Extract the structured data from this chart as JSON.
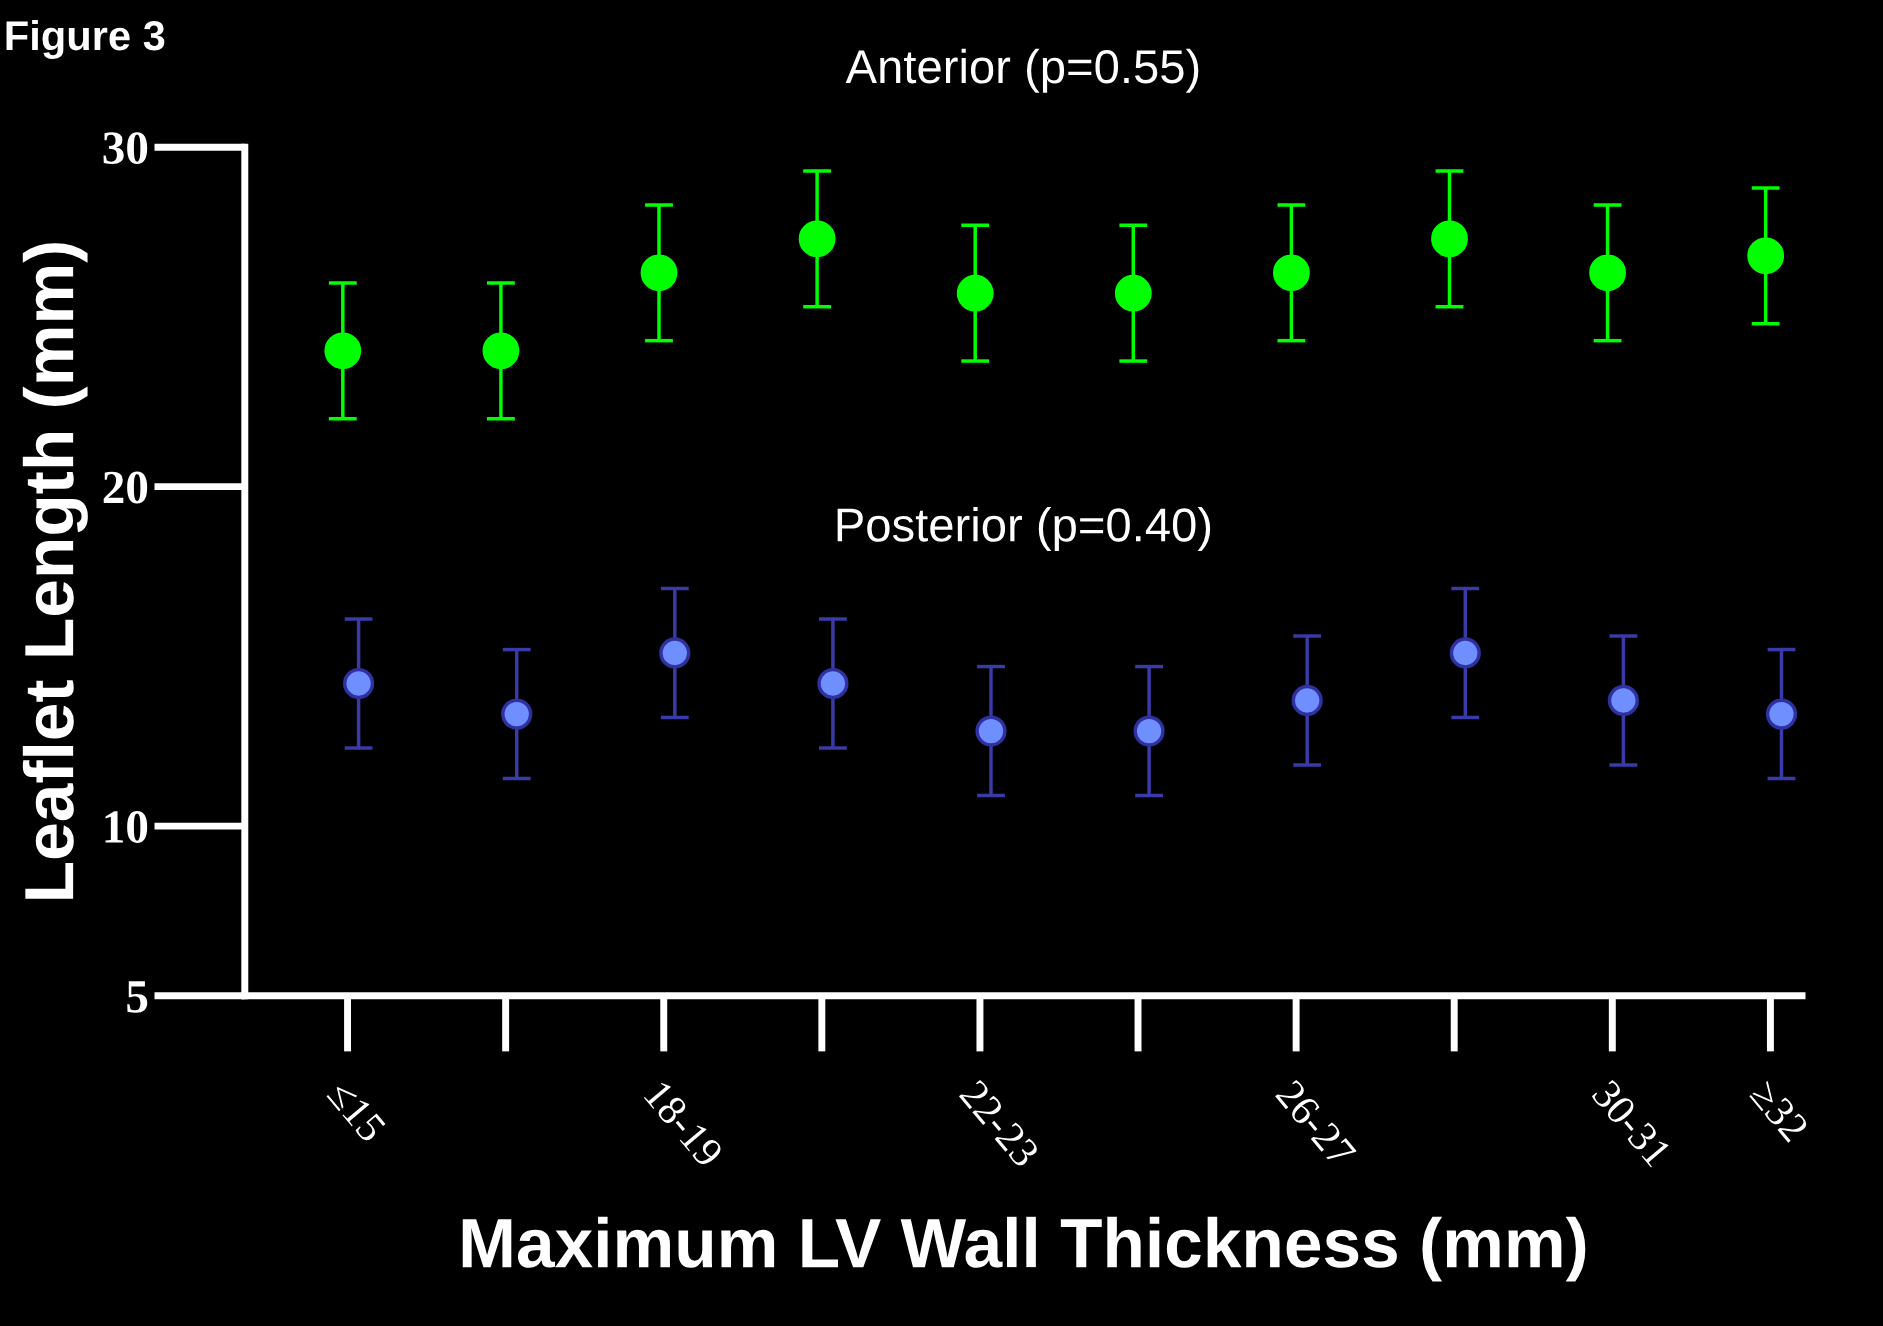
{
  "chart_data": {
    "type": "scatter",
    "title": "Figure 3",
    "xlabel": "Maximum LV Wall Thickness (mm)",
    "ylabel": "Leaflet Length (mm)",
    "categories": [
      "≤15",
      null,
      "18-19",
      null,
      "22-23",
      null,
      "26-27",
      null,
      "30-31",
      "≥32"
    ],
    "series": [
      {
        "color": "#00ff00",
        "values": [
          24.0,
          24.0,
          26.3,
          27.3,
          25.7,
          25.7,
          26.3,
          27.3,
          26.3,
          26.8
        ],
        "errors": [
          2,
          2,
          2,
          2,
          2,
          2,
          2,
          2,
          2,
          2
        ]
      },
      {
        "color": "#6f8fff",
        "values": [
          14.2,
          13.3,
          15.1,
          14.2,
          12.8,
          12.8,
          13.7,
          15.1,
          13.7,
          13.3
        ],
        "errors": [
          1.9,
          1.9,
          1.9,
          1.9,
          1.9,
          1.9,
          1.9,
          1.9,
          1.9,
          1.9
        ]
      }
    ],
    "annotations": [
      "Anterior (p=0.55)",
      "Posterior (p=0.40)"
    ],
    "ylim": [
      5,
      30
    ],
    "yticks": [
      5,
      10,
      20,
      30
    ],
    "marker": "circle",
    "grid": false,
    "legend": false
  }
}
